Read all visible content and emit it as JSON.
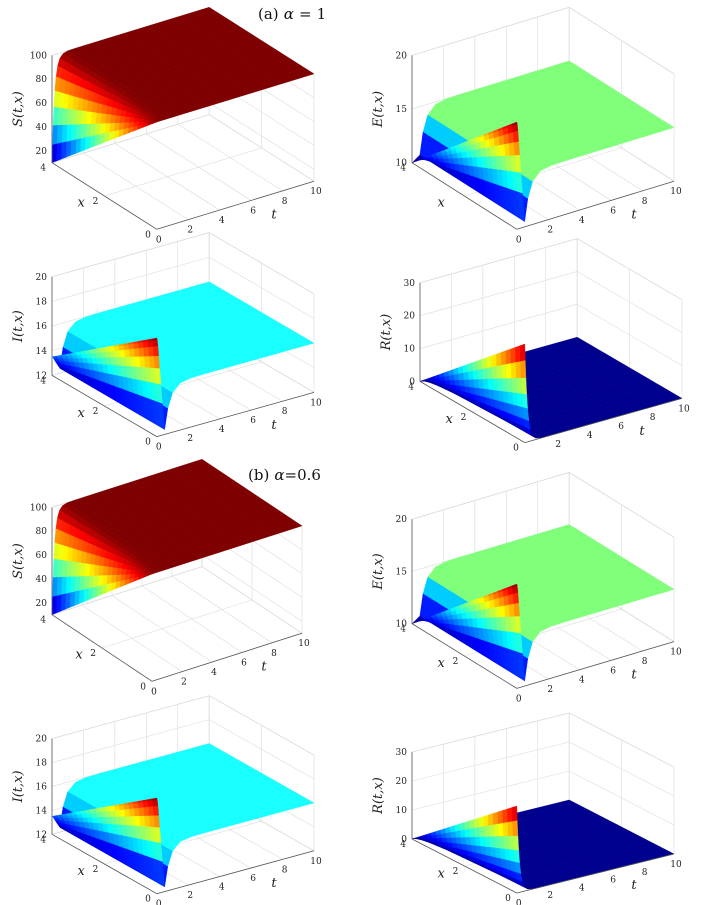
{
  "captions": {
    "a": {
      "tag": "(a)",
      "symbol": "α",
      "relation": "=",
      "value": "1"
    },
    "b": {
      "tag": "(b)",
      "symbol": "α",
      "relation": "=",
      "value": "0.6"
    }
  },
  "chart_data": [
    {
      "id": "a-S",
      "type": "surface",
      "panel": "a",
      "title": "",
      "zlabel": "S(t,x)",
      "xlabel": "t",
      "ylabel": "x",
      "t_range": [
        0,
        10
      ],
      "t_ticks": [
        "0",
        "2",
        "4",
        "6",
        "8",
        "10"
      ],
      "x_range": [
        0,
        4
      ],
      "x_ticks": [
        "0",
        "2",
        "4"
      ],
      "z_range": [
        10,
        100
      ],
      "z_ticks": [
        "20",
        "40",
        "60",
        "80",
        "100"
      ],
      "initial_at_t0": [
        10,
        100
      ],
      "steady_value": 100,
      "profile": "rise",
      "colormap": "jet",
      "steady_color": "#7f0000"
    },
    {
      "id": "a-E",
      "type": "surface",
      "panel": "a",
      "title": "",
      "zlabel": "E(t,x)",
      "xlabel": "t",
      "ylabel": "x",
      "t_range": [
        0,
        10
      ],
      "t_ticks": [
        "0",
        "2",
        "4",
        "6",
        "8",
        "10"
      ],
      "x_range": [
        0,
        4
      ],
      "x_ticks": [
        "4"
      ],
      "z_range": [
        10,
        20
      ],
      "z_ticks": [
        "10",
        "15",
        "20"
      ],
      "initial_at_t0": [
        10,
        20
      ],
      "steady_value": 15,
      "profile": "dip",
      "colormap": "jet",
      "steady_color": "#80ff7a"
    },
    {
      "id": "a-I",
      "type": "surface",
      "panel": "a",
      "title": "",
      "zlabel": "I(t,x)",
      "xlabel": "t",
      "ylabel": "x",
      "t_range": [
        0,
        10
      ],
      "t_ticks": [
        "0",
        "2",
        "4",
        "6",
        "8",
        "10"
      ],
      "x_range": [
        0,
        4
      ],
      "x_ticks": [
        "0",
        "2",
        "4"
      ],
      "z_range": [
        12,
        20
      ],
      "z_ticks": [
        "12",
        "14",
        "16",
        "18",
        "20"
      ],
      "initial_at_t0": [
        13.5,
        20
      ],
      "steady_value": 16,
      "profile": "dip",
      "colormap": "jet",
      "steady_color": "#19ffff"
    },
    {
      "id": "a-R",
      "type": "surface",
      "panel": "a",
      "title": "",
      "zlabel": "R(t,x)",
      "xlabel": "t",
      "ylabel": "x",
      "t_range": [
        0,
        10
      ],
      "t_ticks": [
        "2",
        "4",
        "6",
        "8",
        "10"
      ],
      "x_range": [
        0,
        4
      ],
      "x_ticks": [
        "0",
        "2",
        "4"
      ],
      "z_range": [
        0,
        30
      ],
      "z_ticks": [
        "0",
        "10",
        "20",
        "30"
      ],
      "initial_at_t0": [
        0,
        30
      ],
      "steady_value": 0,
      "profile": "decay",
      "colormap": "jet",
      "steady_color": "#00008f"
    },
    {
      "id": "b-S",
      "type": "surface",
      "panel": "b",
      "title": "",
      "zlabel": "S(t,x)",
      "xlabel": "t",
      "ylabel": "x",
      "t_range": [
        0,
        10
      ],
      "t_ticks": [
        "0",
        "2",
        "4",
        "6",
        "8",
        "10"
      ],
      "x_range": [
        0,
        4
      ],
      "x_ticks": [
        "0",
        "2",
        "4"
      ],
      "z_range": [
        10,
        100
      ],
      "z_ticks": [
        "20",
        "40",
        "60",
        "80",
        "100"
      ],
      "initial_at_t0": [
        10,
        100
      ],
      "steady_value": 100,
      "profile": "rise",
      "colormap": "jet",
      "steady_color": "#7f0000"
    },
    {
      "id": "b-E",
      "type": "surface",
      "panel": "b",
      "title": "",
      "zlabel": "E(t,x)",
      "xlabel": "t",
      "ylabel": "x",
      "t_range": [
        0,
        10
      ],
      "t_ticks": [
        "0",
        "2",
        "4",
        "6",
        "8",
        "10"
      ],
      "x_range": [
        0,
        4
      ],
      "x_ticks": [
        "2",
        "4"
      ],
      "z_range": [
        10,
        20
      ],
      "z_ticks": [
        "10",
        "15",
        "20"
      ],
      "initial_at_t0": [
        10,
        20
      ],
      "steady_value": 15,
      "profile": "dip",
      "colormap": "jet",
      "steady_color": "#80ff7a"
    },
    {
      "id": "b-I",
      "type": "surface",
      "panel": "b",
      "title": "",
      "zlabel": "I(t,x)",
      "xlabel": "t",
      "ylabel": "x",
      "t_range": [
        0,
        10
      ],
      "t_ticks": [
        "0",
        "2",
        "4",
        "6",
        "8",
        "10"
      ],
      "x_range": [
        0,
        4
      ],
      "x_ticks": [
        "0",
        "2",
        "4"
      ],
      "z_range": [
        12,
        20
      ],
      "z_ticks": [
        "12",
        "14",
        "16",
        "18",
        "20"
      ],
      "initial_at_t0": [
        13.5,
        20
      ],
      "steady_value": 16,
      "profile": "dip",
      "colormap": "jet",
      "steady_color": "#19ffff"
    },
    {
      "id": "b-R",
      "type": "surface",
      "panel": "b",
      "title": "",
      "zlabel": "R(t,x)",
      "xlabel": "t",
      "ylabel": "x",
      "t_range": [
        0,
        10
      ],
      "t_ticks": [
        "0",
        "2",
        "4",
        "6",
        "8",
        "10"
      ],
      "x_range": [
        0,
        4
      ],
      "x_ticks": [
        "0",
        "2",
        "4"
      ],
      "z_range": [
        0,
        30
      ],
      "z_ticks": [
        "0",
        "10",
        "20",
        "30"
      ],
      "initial_at_t0": [
        0,
        30
      ],
      "steady_value": 0,
      "profile": "decay",
      "colormap": "jet",
      "steady_color": "#00008f"
    }
  ]
}
